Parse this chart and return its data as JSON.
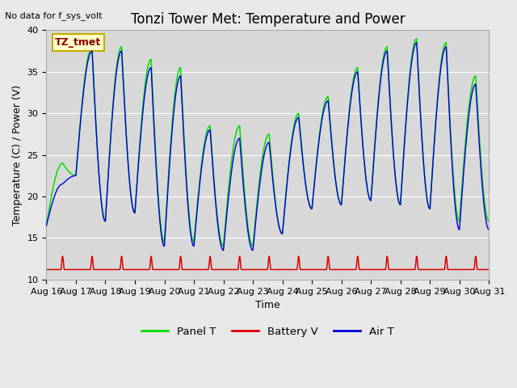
{
  "title": "Tonzi Tower Met: Temperature and Power",
  "top_left_text": "No data for f_sys_volt",
  "ylabel": "Temperature (C) / Power (V)",
  "xlabel": "Time",
  "ylim": [
    10,
    40
  ],
  "xlim_days": [
    0,
    15
  ],
  "xtick_labels": [
    "Aug 16",
    "Aug 17",
    "Aug 18",
    "Aug 19",
    "Aug 20",
    "Aug 21",
    "Aug 22",
    "Aug 23",
    "Aug 24",
    "Aug 25",
    "Aug 26",
    "Aug 27",
    "Aug 28",
    "Aug 29",
    "Aug 30",
    "Aug 31"
  ],
  "legend_entries": [
    {
      "label": "Panel T",
      "color": "#00dd00"
    },
    {
      "label": "Battery V",
      "color": "#dd0000"
    },
    {
      "label": "Air T",
      "color": "#0000dd"
    }
  ],
  "annotation_box": {
    "text": "TZ_tmet"
  },
  "background_color": "#e8e8e8",
  "plot_bg_color": "#d8d8d8",
  "title_fontsize": 12,
  "label_fontsize": 9,
  "tick_fontsize": 8,
  "day_peaks_panel": [
    24.0,
    38.0,
    38.0,
    36.5,
    35.5,
    28.5,
    28.5,
    27.5,
    30.0,
    32.0,
    35.5,
    38.0,
    39.0,
    38.5,
    34.5
  ],
  "day_mins_panel": [
    16.5,
    22.5,
    17.0,
    18.0,
    14.5,
    14.5,
    14.0,
    14.0,
    15.5,
    18.5,
    19.0,
    19.5,
    19.0,
    18.5,
    17.0
  ],
  "day_peaks_air": [
    21.5,
    37.5,
    37.5,
    35.5,
    34.5,
    28.0,
    27.0,
    26.5,
    29.5,
    31.5,
    35.0,
    37.5,
    38.5,
    38.0,
    33.5
  ],
  "day_mins_air": [
    16.5,
    22.5,
    17.0,
    18.0,
    14.0,
    14.0,
    13.5,
    13.5,
    15.5,
    18.5,
    19.0,
    19.5,
    19.0,
    18.5,
    16.0
  ],
  "bat_base": 11.2,
  "bat_peak": 12.8,
  "pts_per_day": 144
}
